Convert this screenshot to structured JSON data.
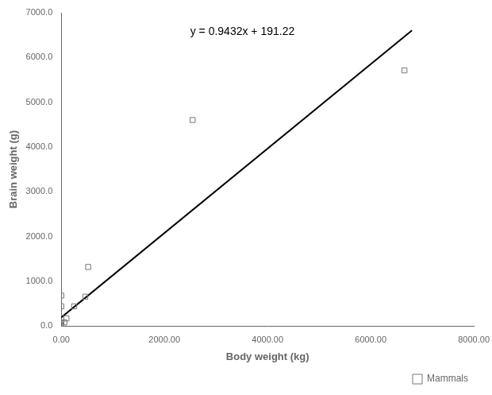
{
  "chart_data": {
    "type": "scatter",
    "xlabel": "Body weight (kg)",
    "ylabel": "Brain weight (g)",
    "series": [
      {
        "name": "Mammals",
        "type": "scatter",
        "marker": "square",
        "color": "#777777",
        "x": [
          0.023,
          0.05,
          0.1,
          0.12,
          0.3,
          0.4,
          0.45,
          0.5,
          0.5,
          60,
          100,
          250,
          465,
          521,
          2547,
          6654
        ],
        "values": [
          0.4,
          1.2,
          3.0,
          1.0,
          25,
          180,
          56,
          440,
          680,
          81,
          169,
          440,
          655,
          1320,
          4603,
          5712
        ]
      },
      {
        "type": "line",
        "color": "#000000",
        "line_style": "solid",
        "x": [
          0,
          6800
        ],
        "values": [
          191.22,
          6604.98
        ]
      }
    ],
    "annotations": [
      {
        "text": "y = 0.9432x + 191.22",
        "x": 2500,
        "y": 6700
      }
    ],
    "xlim": [
      0,
      8000
    ],
    "ylim": [
      0,
      7000
    ],
    "xticks": [
      {
        "value": 0,
        "label": "0.00"
      },
      {
        "value": 2000,
        "label": "2000.00"
      },
      {
        "value": 4000,
        "label": "4000.00"
      },
      {
        "value": 6000,
        "label": "6000.00"
      },
      {
        "value": 8000,
        "label": "8000.00"
      }
    ],
    "yticks": [
      {
        "value": 0,
        "label": "0.0"
      },
      {
        "value": 1000,
        "label": "1000.0"
      },
      {
        "value": 2000,
        "label": "2000.0"
      },
      {
        "value": 3000,
        "label": "3000.0"
      },
      {
        "value": 4000,
        "label": "4000.0"
      },
      {
        "value": 5000,
        "label": "5000.0"
      },
      {
        "value": 6000,
        "label": "6000.0"
      },
      {
        "value": 7000,
        "label": "7000.0"
      }
    ],
    "grid": false,
    "legend": "lower right"
  }
}
